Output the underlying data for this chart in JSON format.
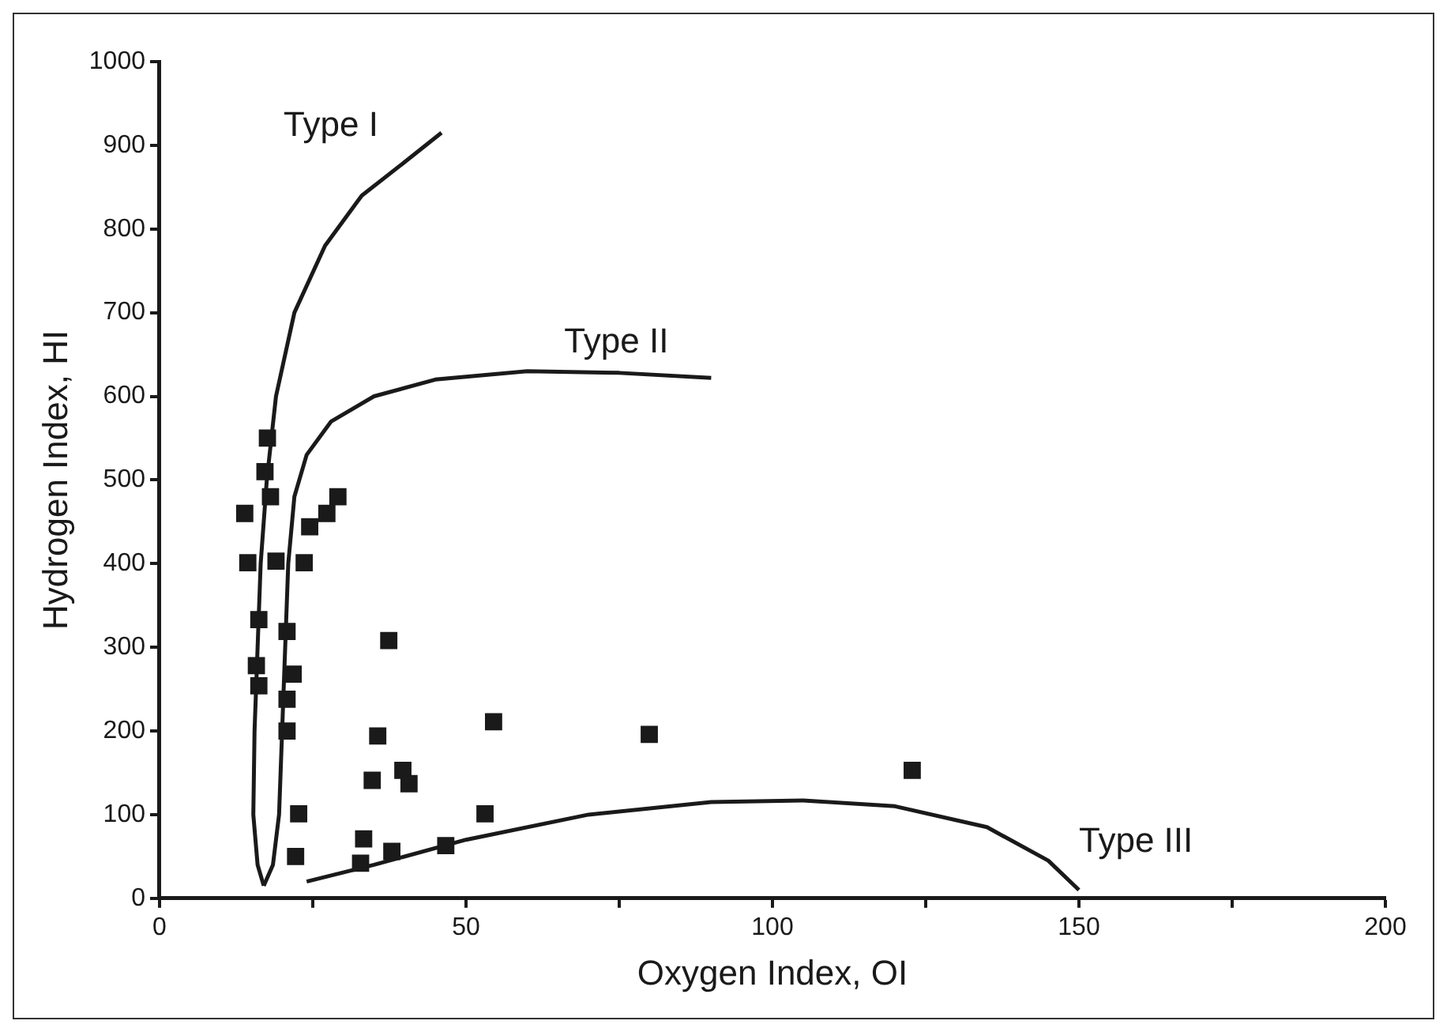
{
  "chart_data": {
    "type": "scatter",
    "xlabel": "Oxygen Index, OI",
    "ylabel": "Hydrogen Index, HI",
    "xlim": [
      0,
      200
    ],
    "ylim": [
      0,
      1000
    ],
    "xticks": [
      0,
      {
        "value": 25,
        "label": null
      },
      50,
      {
        "value": 75,
        "label": null
      },
      100,
      {
        "value": 125,
        "label": null
      },
      150,
      {
        "value": 175,
        "label": null
      },
      200
    ],
    "yticks": [
      0,
      100,
      200,
      300,
      400,
      500,
      600,
      700,
      800,
      900,
      1000
    ],
    "grid": false,
    "series": [
      {
        "color": "#1a1a1a",
        "marker": "square",
        "x": [
          17.6,
          17.2,
          18.1,
          13.9,
          29.1,
          27.3,
          24.5,
          14.4,
          19.0,
          23.6,
          16.2,
          20.8,
          15.8,
          16.2,
          21.8,
          20.8,
          20.8,
          22.7,
          22.2,
          37.4,
          35.6,
          34.7,
          33.3,
          32.8,
          54.5,
          79.9,
          39.7,
          40.7,
          53.1,
          46.7,
          37.9,
          122.8
        ],
        "values": [
          550,
          510,
          480,
          460,
          480,
          460,
          444,
          401,
          403,
          401,
          333,
          319,
          278,
          254,
          268,
          238,
          200,
          101,
          50,
          308,
          194,
          141,
          71,
          42,
          211,
          196,
          153,
          137,
          101,
          63,
          56,
          153
        ]
      },
      {
        "type": "line",
        "name": "Type I",
        "marker": "none",
        "color": "#1a1a1a",
        "x": [
          46,
          40,
          33,
          27,
          22,
          19,
          17.5,
          16.5,
          16,
          15.5,
          15.3,
          16,
          17
        ],
        "values": [
          915,
          880,
          840,
          780,
          700,
          600,
          500,
          400,
          300,
          200,
          100,
          40,
          15
        ]
      },
      {
        "type": "line",
        "name": "Type II",
        "marker": "none",
        "color": "#1a1a1a",
        "x": [
          17,
          18.5,
          19.5,
          20,
          20.5,
          21,
          22,
          24,
          28,
          35,
          45,
          60,
          75,
          90
        ],
        "values": [
          15,
          40,
          100,
          200,
          300,
          400,
          480,
          530,
          570,
          600,
          620,
          630,
          628,
          622
        ]
      },
      {
        "type": "line",
        "name": "Type III",
        "marker": "none",
        "color": "#1a1a1a",
        "x": [
          24,
          35,
          50,
          70,
          90,
          105,
          120,
          135,
          145,
          150
        ],
        "values": [
          20,
          40,
          70,
          100,
          115,
          117,
          110,
          85,
          45,
          10
        ]
      }
    ]
  }
}
